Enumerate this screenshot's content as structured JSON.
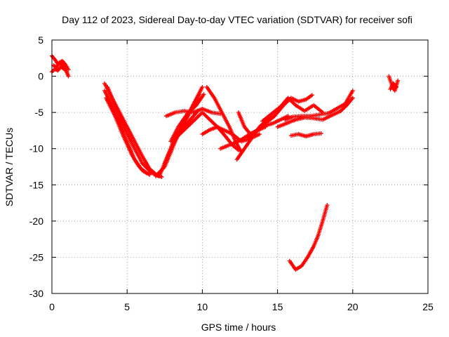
{
  "chart_data": {
    "type": "scatter",
    "title": "Day 112 of 2023, Sidereal Day-to-day VTEC variation (SDTVAR) for receiver sofi",
    "xlabel": "GPS time / hours",
    "ylabel": "SDTVAR / TECUs",
    "xlim": [
      0,
      25
    ],
    "ylim": [
      -30,
      5
    ],
    "xticks": [
      0,
      5,
      10,
      15,
      20,
      25
    ],
    "yticks": [
      5,
      0,
      -5,
      -10,
      -15,
      -20,
      -25,
      -30
    ],
    "grid": true,
    "marker": "plus",
    "color": "#ff0000",
    "tracks": [
      [
        [
          0.0,
          2.8
        ],
        [
          0.2,
          2.3
        ],
        [
          0.4,
          1.7
        ],
        [
          0.6,
          1.8
        ],
        [
          0.8,
          1.2
        ],
        [
          1.0,
          0.5
        ],
        [
          1.1,
          0.0
        ]
      ],
      [
        [
          0.1,
          1.5
        ],
        [
          0.3,
          1.2
        ],
        [
          0.5,
          1.9
        ],
        [
          0.7,
          2.1
        ],
        [
          0.9,
          1.6
        ],
        [
          1.1,
          0.9
        ]
      ],
      [
        [
          0.0,
          0.6
        ],
        [
          0.2,
          1.0
        ],
        [
          0.4,
          0.8
        ],
        [
          0.6,
          1.3
        ],
        [
          0.8,
          1.0
        ]
      ],
      [
        [
          3.5,
          -1.0
        ],
        [
          4.0,
          -3.0
        ],
        [
          4.5,
          -5.0
        ],
        [
          5.0,
          -7.0
        ],
        [
          5.5,
          -9.0
        ],
        [
          6.0,
          -11.0
        ],
        [
          6.5,
          -12.8
        ],
        [
          7.0,
          -13.7
        ],
        [
          7.3,
          -13.9
        ]
      ],
      [
        [
          3.5,
          -2.0
        ],
        [
          4.0,
          -4.0
        ],
        [
          4.5,
          -6.5
        ],
        [
          5.0,
          -9.0
        ],
        [
          5.5,
          -11.5
        ],
        [
          6.0,
          -13.0
        ],
        [
          6.5,
          -13.6
        ]
      ],
      [
        [
          3.6,
          -3.0
        ],
        [
          4.2,
          -5.5
        ],
        [
          4.8,
          -8.5
        ],
        [
          5.3,
          -10.8
        ],
        [
          5.8,
          -12.5
        ],
        [
          6.3,
          -13.4
        ]
      ],
      [
        [
          3.7,
          -1.5
        ],
        [
          4.3,
          -4.5
        ],
        [
          4.9,
          -7.5
        ],
        [
          5.5,
          -10.0
        ],
        [
          6.0,
          -12.0
        ],
        [
          6.6,
          -13.3
        ],
        [
          7.1,
          -13.8
        ]
      ],
      [
        [
          6.9,
          -13.8
        ],
        [
          7.5,
          -12.5
        ],
        [
          8.0,
          -10.0
        ],
        [
          8.5,
          -7.5
        ],
        [
          9.0,
          -5.5
        ],
        [
          9.5,
          -3.5
        ],
        [
          10.0,
          -1.5
        ]
      ],
      [
        [
          7.2,
          -13.5
        ],
        [
          7.7,
          -11.0
        ],
        [
          8.2,
          -8.5
        ],
        [
          8.8,
          -6.5
        ],
        [
          9.3,
          -4.5
        ],
        [
          9.8,
          -2.5
        ]
      ],
      [
        [
          7.5,
          -12.0
        ],
        [
          8.0,
          -9.5
        ],
        [
          8.6,
          -7.5
        ],
        [
          9.2,
          -6.0
        ],
        [
          9.7,
          -4.8
        ]
      ],
      [
        [
          7.9,
          -9.0
        ],
        [
          8.4,
          -7.0
        ],
        [
          9.0,
          -5.2
        ],
        [
          9.6,
          -4.0
        ],
        [
          10.1,
          -2.5
        ]
      ],
      [
        [
          7.6,
          -5.5
        ],
        [
          8.2,
          -5.0
        ],
        [
          8.8,
          -4.8
        ],
        [
          9.4,
          -5.0
        ],
        [
          10.0,
          -4.5
        ],
        [
          10.6,
          -5.0
        ],
        [
          11.2,
          -5.2
        ]
      ],
      [
        [
          8.5,
          -8.0
        ],
        [
          9.0,
          -7.0
        ],
        [
          9.5,
          -6.0
        ],
        [
          10.0,
          -5.0
        ],
        [
          10.5,
          -6.0
        ],
        [
          11.0,
          -7.0
        ],
        [
          11.5,
          -8.2
        ],
        [
          12.0,
          -9.5
        ],
        [
          12.4,
          -10.2
        ]
      ],
      [
        [
          10.3,
          -1.5
        ],
        [
          10.8,
          -3.0
        ],
        [
          11.3,
          -5.0
        ],
        [
          11.8,
          -7.0
        ],
        [
          12.2,
          -9.0
        ],
        [
          12.6,
          -10.5
        ]
      ],
      [
        [
          10.0,
          -8.0
        ],
        [
          10.5,
          -7.4
        ],
        [
          11.0,
          -7.0
        ],
        [
          11.5,
          -7.5
        ],
        [
          12.0,
          -8.0
        ],
        [
          12.6,
          -9.0
        ],
        [
          13.2,
          -8.6
        ],
        [
          13.8,
          -8.0
        ]
      ],
      [
        [
          11.2,
          -10.0
        ],
        [
          11.8,
          -9.5
        ],
        [
          12.4,
          -9.0
        ],
        [
          13.0,
          -8.2
        ],
        [
          13.6,
          -7.5
        ],
        [
          14.2,
          -7.0
        ]
      ],
      [
        [
          12.3,
          -11.5
        ],
        [
          12.8,
          -10.0
        ],
        [
          13.3,
          -8.5
        ],
        [
          13.8,
          -7.0
        ],
        [
          14.3,
          -6.0
        ],
        [
          14.8,
          -5.5
        ]
      ],
      [
        [
          12.4,
          -5.0
        ],
        [
          12.8,
          -7.0
        ],
        [
          13.2,
          -8.0
        ],
        [
          13.7,
          -7.5
        ],
        [
          14.2,
          -6.8
        ],
        [
          14.7,
          -6.5
        ],
        [
          15.2,
          -6.0
        ],
        [
          15.7,
          -5.5
        ]
      ],
      [
        [
          13.0,
          -8.5
        ],
        [
          13.6,
          -7.5
        ],
        [
          14.2,
          -6.5
        ],
        [
          14.8,
          -5.5
        ],
        [
          15.4,
          -4.0
        ],
        [
          15.9,
          -3.0
        ],
        [
          16.4,
          -3.5
        ],
        [
          16.9,
          -3.2
        ],
        [
          17.3,
          -2.6
        ]
      ],
      [
        [
          14.0,
          -6.2
        ],
        [
          14.6,
          -5.2
        ],
        [
          15.2,
          -4.2
        ],
        [
          15.7,
          -3.0
        ],
        [
          16.2,
          -4.0
        ],
        [
          16.8,
          -4.8
        ],
        [
          17.4,
          -4.0
        ],
        [
          18.0,
          -5.0
        ]
      ],
      [
        [
          15.0,
          -7.0
        ],
        [
          15.6,
          -6.5
        ],
        [
          16.2,
          -6.0
        ],
        [
          16.8,
          -5.7
        ],
        [
          17.4,
          -5.8
        ],
        [
          18.0,
          -6.0
        ],
        [
          18.6,
          -5.4
        ],
        [
          19.2,
          -4.8
        ],
        [
          19.6,
          -4.0
        ],
        [
          20.0,
          -3.0
        ]
      ],
      [
        [
          15.5,
          -6.0
        ],
        [
          16.0,
          -5.6
        ],
        [
          16.6,
          -5.5
        ],
        [
          17.2,
          -5.5
        ],
        [
          17.8,
          -5.3
        ],
        [
          18.4,
          -5.1
        ],
        [
          19.0,
          -4.4
        ],
        [
          19.5,
          -3.8
        ],
        [
          20.0,
          -2.0
        ]
      ],
      [
        [
          15.9,
          -8.2
        ],
        [
          16.4,
          -8.0
        ],
        [
          16.9,
          -8.3
        ],
        [
          17.4,
          -8.0
        ],
        [
          17.9,
          -7.9
        ]
      ],
      [
        [
          15.8,
          -25.5
        ],
        [
          16.2,
          -26.7
        ],
        [
          16.6,
          -26.2
        ],
        [
          17.0,
          -25.0
        ],
        [
          17.4,
          -23.5
        ],
        [
          17.7,
          -22.0
        ],
        [
          18.0,
          -20.0
        ],
        [
          18.3,
          -17.8
        ]
      ],
      [
        [
          22.4,
          0.0
        ],
        [
          22.6,
          -1.2
        ],
        [
          22.8,
          -2.0
        ],
        [
          23.0,
          -0.6
        ]
      ],
      [
        [
          22.5,
          -1.8
        ],
        [
          22.7,
          -1.0
        ],
        [
          22.9,
          -1.5
        ]
      ]
    ]
  }
}
